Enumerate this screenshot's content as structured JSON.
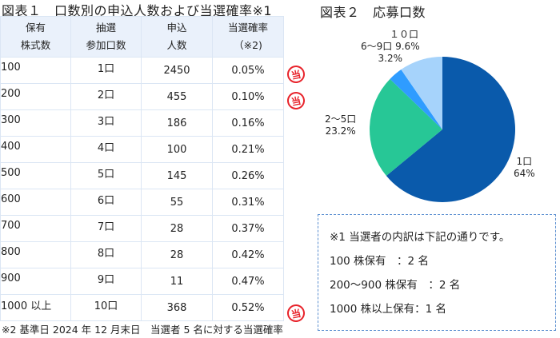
{
  "table1": {
    "title": "図表１　口数別の申込人数および当選確率※1",
    "headers": [
      {
        "line1": "保有",
        "line2": "株式数"
      },
      {
        "line1": "抽選",
        "line2": "参加口数"
      },
      {
        "line1": "申込",
        "line2": "人数"
      },
      {
        "line1": "当選確率",
        "line2": "（※2)"
      }
    ],
    "rows": [
      {
        "shares": "100",
        "units": "1口",
        "applicants": "2450",
        "rate": "0.05%",
        "winner": true
      },
      {
        "shares": "200",
        "units": "2口",
        "applicants": "455",
        "rate": "0.10%",
        "winner": true
      },
      {
        "shares": "300",
        "units": "3口",
        "applicants": "186",
        "rate": "0.16%",
        "winner": false
      },
      {
        "shares": "400",
        "units": "4口",
        "applicants": "100",
        "rate": "0.21%",
        "winner": false
      },
      {
        "shares": "500",
        "units": "5口",
        "applicants": "145",
        "rate": "0.26%",
        "winner": false
      },
      {
        "shares": "600",
        "units": "6口",
        "applicants": "55",
        "rate": "0.31%",
        "winner": false
      },
      {
        "shares": "700",
        "units": "7口",
        "applicants": "28",
        "rate": "0.37%",
        "winner": false
      },
      {
        "shares": "800",
        "units": "8口",
        "applicants": "28",
        "rate": "0.42%",
        "winner": false
      },
      {
        "shares": "900",
        "units": "9口",
        "applicants": "11",
        "rate": "0.47%",
        "winner": false
      },
      {
        "shares": "1000 以上",
        "units": "10口",
        "applicants": "368",
        "rate": "0.52%",
        "winner": true
      }
    ],
    "winner_stamp": "当",
    "footnote": "※2 基準日 2024 年 12 月末日　当選者 5 名に対する当選確率"
  },
  "chart_data": {
    "type": "pie",
    "title": "図表２　応募口数",
    "categories": [
      "1口",
      "2～5口",
      "6～9口",
      "１０口"
    ],
    "values": [
      64,
      23.2,
      3.2,
      9.6
    ],
    "labels": [
      "64%",
      "23.2%",
      "3.2%",
      "9.6%"
    ],
    "colors": [
      "#0a5aab",
      "#27c796",
      "#2f9cff",
      "#a6d3fb"
    ],
    "legend": "none",
    "start_angle": "12 o'clock, clockwise"
  },
  "pie_labels": {
    "one": {
      "name": "1口",
      "pct": "64%"
    },
    "two_five": {
      "name": "2～5口",
      "pct": "23.2%"
    },
    "six_nine": {
      "name": "6～9口",
      "pct": "3.2%"
    },
    "ten": {
      "name": "１０口",
      "pct": "9.6%"
    }
  },
  "note": {
    "line1": "※1 当選者の内訳は下記の通りです。",
    "line2": "100 株保有　：2 名",
    "line3": "200～900 株保有　：2 名",
    "line4": "1000 株以上保有：1 名"
  }
}
